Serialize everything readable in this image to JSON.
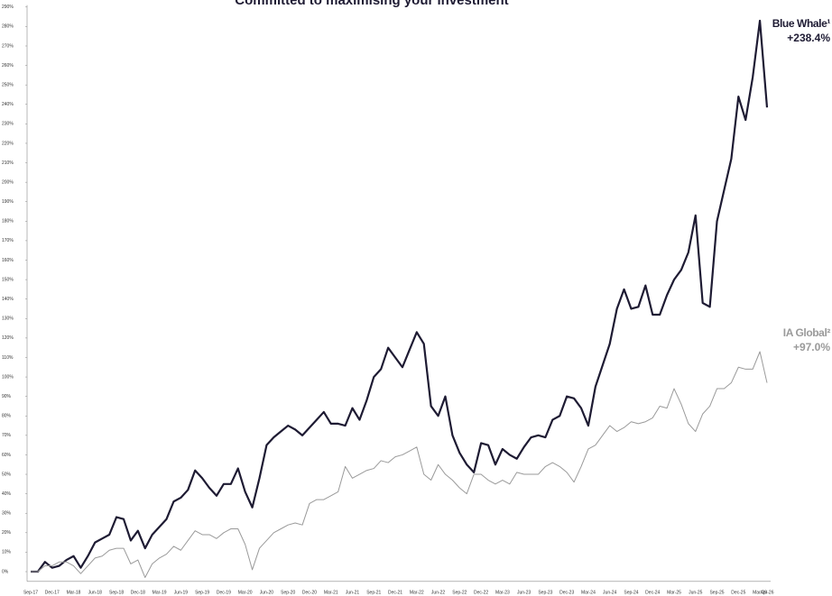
{
  "chart_data": {
    "type": "line",
    "title": "Committed to maximising your investment",
    "categories": [
      "Sep-17",
      null,
      null,
      "Dec-17",
      null,
      null,
      "Mar-18",
      null,
      null,
      "Jun-18",
      null,
      null,
      "Sep-18",
      null,
      null,
      "Dec-18",
      null,
      null,
      "Mar-19",
      null,
      null,
      "Jun-19",
      null,
      null,
      "Sep-19",
      null,
      null,
      "Dec-19",
      null,
      null,
      "Mar-20",
      null,
      null,
      "Jun-20",
      null,
      null,
      "Sep-20",
      null,
      null,
      "Dec-20",
      null,
      null,
      "Mar-21",
      null,
      null,
      "Jun-21",
      null,
      null,
      "Sep-21",
      null,
      null,
      "Dec-21",
      null,
      null,
      "Mar-22",
      null,
      null,
      "Jun-22",
      null,
      null,
      "Sep-22",
      null,
      null,
      "Dec-22",
      null,
      null,
      "Mar-23",
      null,
      null,
      "Jun-23",
      null,
      null,
      "Sep-23",
      null,
      null,
      "Dec-23",
      null,
      null,
      "Mar-24",
      null,
      null,
      "Jun-24",
      null,
      null,
      "Sep-24",
      null,
      null,
      "Dec-24",
      null,
      null,
      "Mar-25",
      null,
      null,
      "Jun-25",
      null,
      null,
      "Sep-25",
      null,
      null,
      "Dec-25",
      null,
      null,
      "Mar-26",
      "Apr-26"
    ],
    "series": [
      {
        "name": "Blue Whale¹",
        "color": "#1e1b33",
        "values": [
          0,
          0,
          5,
          2,
          3,
          6,
          8,
          2,
          8,
          15,
          17,
          19,
          28,
          27,
          16,
          21,
          12,
          19,
          23,
          27,
          36,
          38,
          42,
          52,
          48,
          43,
          39,
          45,
          45,
          53,
          41,
          33,
          48,
          65,
          69,
          72,
          75,
          73,
          70,
          74,
          78,
          82,
          76,
          76,
          75,
          84,
          78,
          88,
          100,
          104,
          115,
          110,
          105,
          114,
          123,
          117,
          85,
          80,
          90,
          70,
          61,
          55,
          51,
          66,
          65,
          55,
          63,
          60,
          58,
          64,
          69,
          70,
          69,
          78,
          80,
          90,
          89,
          84,
          75,
          95,
          106,
          117,
          135,
          145,
          135,
          136,
          147,
          132,
          132,
          142,
          150,
          155,
          164,
          183,
          138,
          136,
          180,
          196,
          212,
          244,
          232,
          254,
          283,
          238.4
        ],
        "value_labels": [
          null,
          null,
          null,
          null,
          null,
          null,
          null,
          null,
          null,
          null,
          null,
          null,
          null,
          null,
          null,
          null,
          null,
          null,
          null,
          null,
          null,
          null,
          null,
          null,
          null,
          null,
          null,
          null,
          null,
          null,
          null,
          null,
          null,
          null,
          null,
          null,
          null,
          null,
          null,
          null,
          null,
          null,
          null,
          null,
          null,
          null,
          null,
          null,
          null,
          null,
          null,
          null,
          null,
          null,
          null,
          null,
          null,
          null,
          null,
          null,
          null,
          null,
          null,
          null,
          null,
          null,
          null,
          null,
          null,
          null,
          null,
          null,
          null,
          null,
          null,
          null,
          null,
          null,
          null,
          null,
          null,
          null,
          null,
          null,
          null,
          null,
          null,
          null,
          null,
          null,
          null,
          null,
          null,
          null,
          null,
          null,
          null,
          null,
          null,
          null,
          null,
          null,
          null,
          "+238.4%"
        ]
      },
      {
        "name": "IA Global²",
        "color": "#9a9a9a",
        "values": [
          0,
          0,
          3,
          3,
          5,
          5,
          3,
          -1,
          3,
          7,
          8,
          11,
          12,
          12,
          4,
          6,
          -3,
          4,
          7,
          9,
          13,
          11,
          16,
          21,
          19,
          19,
          17,
          20,
          22,
          22,
          14,
          1,
          12,
          16,
          20,
          22,
          24,
          25,
          24,
          35,
          37,
          37,
          39,
          41,
          54,
          48,
          50,
          52,
          53,
          57,
          56,
          59,
          60,
          62,
          64,
          50,
          47,
          55,
          50,
          47,
          43,
          40,
          50,
          50,
          47,
          45,
          47,
          45,
          51,
          50,
          50,
          50,
          54,
          56,
          54,
          51,
          46,
          54,
          63,
          65,
          70,
          75,
          72,
          74,
          77,
          76,
          77,
          79,
          85,
          84,
          94,
          86,
          76,
          72,
          81,
          85,
          94,
          94,
          97,
          105,
          104,
          104,
          113,
          97.0
        ],
        "value_labels": [
          null,
          null,
          null,
          null,
          null,
          null,
          null,
          null,
          null,
          null,
          null,
          null,
          null,
          null,
          null,
          null,
          null,
          null,
          null,
          null,
          null,
          null,
          null,
          null,
          null,
          null,
          null,
          null,
          null,
          null,
          null,
          null,
          null,
          null,
          null,
          null,
          null,
          null,
          null,
          null,
          null,
          null,
          null,
          null,
          null,
          null,
          null,
          null,
          null,
          null,
          null,
          null,
          null,
          null,
          null,
          null,
          null,
          null,
          null,
          null,
          null,
          null,
          null,
          null,
          null,
          null,
          null,
          null,
          null,
          null,
          null,
          null,
          null,
          null,
          null,
          null,
          null,
          null,
          null,
          null,
          null,
          null,
          null,
          null,
          null,
          null,
          null,
          null,
          null,
          null,
          null,
          null,
          null,
          null,
          null,
          null,
          null,
          null,
          null,
          null,
          null,
          null,
          null,
          "+97.0%"
        ]
      }
    ],
    "ylim": [
      -5,
      290
    ],
    "yticks": [
      {
        "value": 0,
        "label": "0%"
      },
      {
        "value": 10,
        "label": "10%"
      },
      {
        "value": 20,
        "label": "20%"
      },
      {
        "value": 30,
        "label": "30%"
      },
      {
        "value": 40,
        "label": "40%"
      },
      {
        "value": 50,
        "label": "50%"
      },
      {
        "value": 60,
        "label": "60%"
      },
      {
        "value": 70,
        "label": "70%"
      },
      {
        "value": 80,
        "label": "80%"
      },
      {
        "value": 90,
        "label": "90%"
      },
      {
        "value": 100,
        "label": "100%"
      },
      {
        "value": 110,
        "label": "110%"
      },
      {
        "value": 120,
        "label": "120%"
      },
      {
        "value": 130,
        "label": "130%"
      },
      {
        "value": 140,
        "label": "140%"
      },
      {
        "value": 150,
        "label": "150%"
      },
      {
        "value": 160,
        "label": "160%"
      },
      {
        "value": 170,
        "label": "170%"
      },
      {
        "value": 180,
        "label": "180%"
      },
      {
        "value": 190,
        "label": "190%"
      },
      {
        "value": 200,
        "label": "200%"
      },
      {
        "value": 210,
        "label": "210%"
      },
      {
        "value": 220,
        "label": "220%"
      },
      {
        "value": 230,
        "label": "230%"
      },
      {
        "value": 240,
        "label": "240%"
      },
      {
        "value": 250,
        "label": "250%"
      },
      {
        "value": 260,
        "label": "260%"
      },
      {
        "value": 270,
        "label": "270%"
      },
      {
        "value": 280,
        "label": "280%"
      },
      {
        "value": 290,
        "label": "290%"
      }
    ],
    "grid": false
  }
}
